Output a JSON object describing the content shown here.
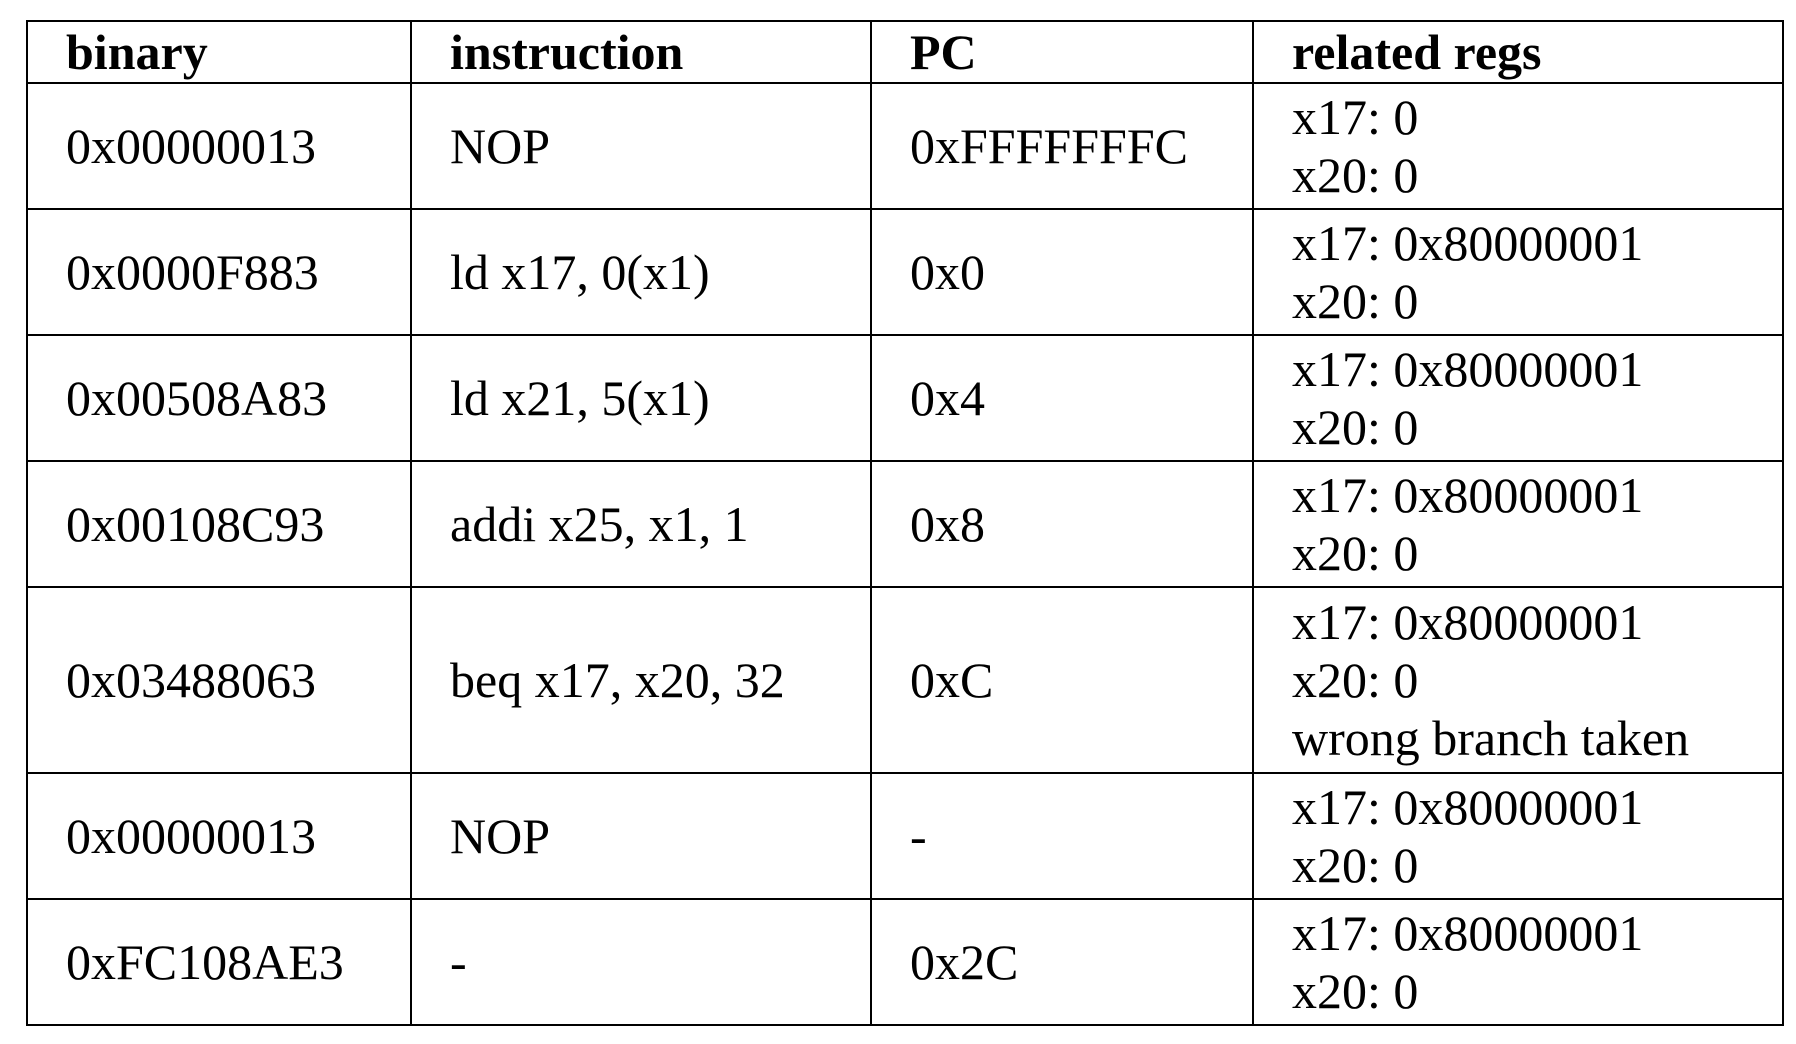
{
  "headers": {
    "binary": "binary",
    "instruction": "instruction",
    "pc": "PC",
    "regs": "related regs"
  },
  "rows": [
    {
      "binary": "0x00000013",
      "instruction": "NOP",
      "pc": "0xFFFFFFFC",
      "regs": [
        "x17: 0",
        "x20: 0"
      ]
    },
    {
      "binary": "0x0000F883",
      "instruction": "ld x17, 0(x1)",
      "pc": "0x0",
      "regs": [
        "x17: 0x80000001",
        "x20: 0"
      ]
    },
    {
      "binary": "0x00508A83",
      "instruction": "ld x21, 5(x1)",
      "pc": "0x4",
      "regs": [
        "x17: 0x80000001",
        "x20: 0"
      ]
    },
    {
      "binary": "0x00108C93",
      "instruction": "addi x25, x1, 1",
      "pc": "0x8",
      "regs": [
        "x17: 0x80000001",
        "x20: 0"
      ]
    },
    {
      "binary": "0x03488063",
      "instruction": "beq x17, x20, 32",
      "pc": "0xC",
      "regs": [
        "x17: 0x80000001",
        "x20: 0",
        "wrong branch taken"
      ]
    },
    {
      "binary": "0x00000013",
      "instruction": "NOP",
      "pc": "-",
      "regs": [
        "x17: 0x80000001",
        "x20: 0"
      ]
    },
    {
      "binary": "0xFC108AE3",
      "instruction": "-",
      "pc": "0x2C",
      "regs": [
        "x17: 0x80000001",
        "x20: 0"
      ]
    }
  ]
}
